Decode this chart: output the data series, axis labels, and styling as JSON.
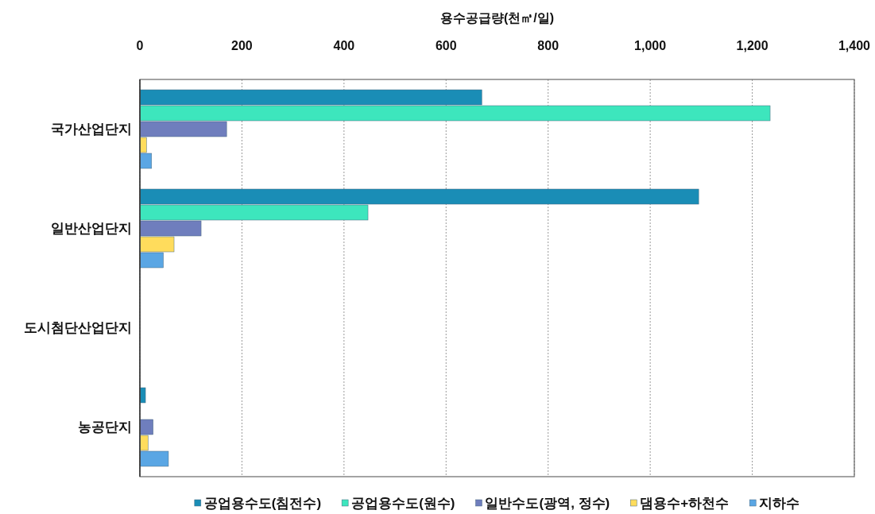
{
  "chart_data": {
    "type": "bar",
    "orientation": "horizontal",
    "xlabel": "용수공급량(천㎥/일)",
    "categories": [
      "국가산업단지",
      "일반산업단지",
      "도시첨단산업단지",
      "농공단지"
    ],
    "series": [
      {
        "name": "공업용수도(침전수)",
        "color": "#1a8db6",
        "values": [
          670,
          1095,
          null,
          11
        ]
      },
      {
        "name": "공업용수도(원수)",
        "color": "#3de6bd",
        "values": [
          1235,
          447,
          null,
          null
        ]
      },
      {
        "name": "일반수도(광역, 정수)",
        "color": "#6f7ebd",
        "values": [
          170,
          120,
          null,
          26
        ]
      },
      {
        "name": "댐용수+하천수",
        "color": "#ffdc5c",
        "values": [
          13,
          67,
          null,
          16
        ]
      },
      {
        "name": "지하수",
        "color": "#5aa6e4",
        "values": [
          23,
          46,
          null,
          56
        ]
      }
    ],
    "xlim": [
      0,
      1400
    ],
    "xticks": [
      0,
      200,
      400,
      600,
      800,
      {
        "value": 1000,
        "label": "1,000"
      },
      {
        "value": 1200,
        "label": "1,200"
      },
      {
        "value": 1400,
        "label": "1,400"
      }
    ],
    "grid": "x",
    "legend": "bottom"
  }
}
